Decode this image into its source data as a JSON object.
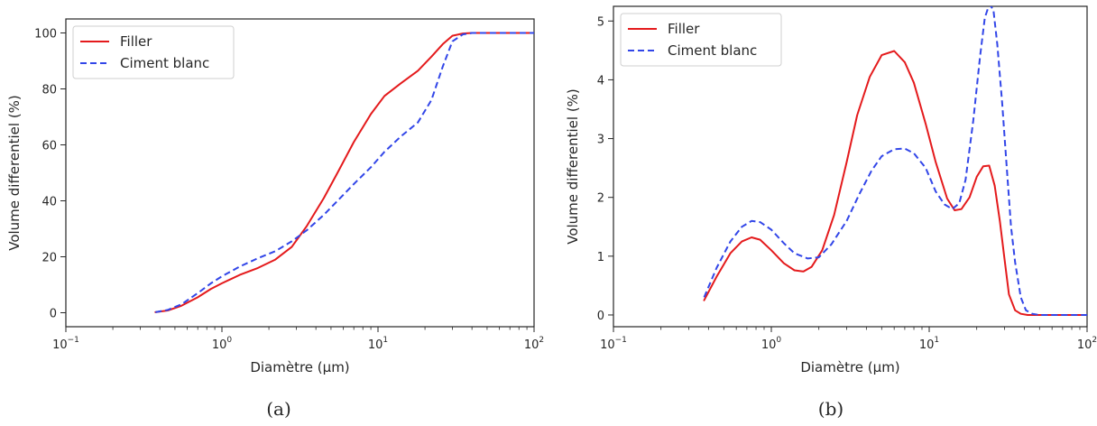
{
  "colors": {
    "filler": "#e41a1c",
    "ciment": "#3246e8",
    "axis": "#262626"
  },
  "chart_data": [
    {
      "type": "line",
      "caption": "(a)",
      "xlabel": "Diamètre (µm)",
      "ylabel": "Volume differentiel (%)",
      "xscale": "log",
      "xlim": [
        0.1,
        100
      ],
      "ylim": [
        -5,
        105
      ],
      "xticks": [
        0.1,
        1,
        10,
        100
      ],
      "xtick_labels": [
        {
          "base": "10",
          "exp": "−1"
        },
        {
          "base": "10",
          "exp": "0"
        },
        {
          "base": "10",
          "exp": "1"
        },
        {
          "base": "10",
          "exp": "2"
        }
      ],
      "yticks": [
        0,
        20,
        40,
        60,
        80,
        100
      ],
      "ytick_labels": [
        "0",
        "20",
        "40",
        "60",
        "80",
        "100"
      ],
      "legend": {
        "position": "top-left",
        "entries": [
          "Filler",
          "Ciment blanc"
        ]
      },
      "series": [
        {
          "name": "Filler",
          "style": "solid",
          "color_key": "filler",
          "x": [
            0.375,
            0.45,
            0.55,
            0.7,
            0.85,
            1.0,
            1.3,
            1.7,
            2.2,
            2.8,
            3.5,
            4.5,
            5.5,
            7.0,
            9.0,
            11.0,
            14.0,
            18.0,
            22.0,
            26.0,
            30.0,
            35.0,
            40.0,
            100.0
          ],
          "y": [
            0.2,
            0.8,
            2.5,
            5.5,
            8.5,
            10.5,
            13.5,
            16.0,
            19.0,
            23.5,
            31.0,
            41.0,
            50.0,
            61.0,
            71.0,
            77.5,
            82.0,
            86.5,
            91.5,
            96.0,
            99.0,
            99.8,
            100,
            100
          ]
        },
        {
          "name": "Ciment blanc",
          "style": "dashed",
          "color_key": "ciment",
          "x": [
            0.375,
            0.45,
            0.55,
            0.7,
            0.85,
            1.0,
            1.3,
            1.7,
            2.2,
            2.8,
            3.5,
            4.5,
            5.5,
            7.0,
            9.0,
            11.0,
            14.0,
            18.0,
            22.0,
            26.0,
            30.0,
            35.0,
            40.0,
            100.0
          ],
          "y": [
            0.2,
            1.0,
            3.0,
            7.0,
            10.5,
            13.0,
            16.5,
            19.5,
            22.0,
            25.5,
            29.5,
            35.0,
            40.0,
            46.0,
            52.0,
            57.5,
            63.0,
            68.0,
            76.0,
            88.0,
            97.0,
            99.5,
            100,
            100
          ]
        }
      ]
    },
    {
      "type": "line",
      "caption": "(b)",
      "xlabel": "Diamètre (µm)",
      "ylabel": "Volume differentiel (%)",
      "xscale": "log",
      "xlim": [
        0.1,
        100
      ],
      "ylim": [
        -0.2,
        5.25
      ],
      "xticks": [
        0.1,
        1,
        10,
        100
      ],
      "xtick_labels": [
        {
          "base": "10",
          "exp": "−1"
        },
        {
          "base": "10",
          "exp": "0"
        },
        {
          "base": "10",
          "exp": "1"
        },
        {
          "base": "10",
          "exp": "2"
        }
      ],
      "yticks": [
        0,
        1,
        2,
        3,
        4,
        5
      ],
      "ytick_labels": [
        "0",
        "1",
        "2",
        "3",
        "4",
        "5"
      ],
      "legend": {
        "position": "top-left",
        "entries": [
          "Filler",
          "Ciment blanc"
        ]
      },
      "series": [
        {
          "name": "Filler",
          "style": "solid",
          "color_key": "filler",
          "x": [
            0.375,
            0.45,
            0.55,
            0.65,
            0.75,
            0.85,
            1.0,
            1.2,
            1.4,
            1.6,
            1.8,
            2.1,
            2.5,
            3.0,
            3.5,
            4.2,
            5.0,
            6.0,
            7.0,
            8.0,
            9.5,
            11.0,
            13.0,
            14.5,
            16.0,
            18.0,
            20.0,
            22.0,
            24.0,
            26.0,
            28.0,
            30.0,
            32.0,
            35.0,
            38.0,
            42.0,
            50.0,
            100.0
          ],
          "y": [
            0.25,
            0.65,
            1.05,
            1.25,
            1.32,
            1.28,
            1.1,
            0.88,
            0.76,
            0.74,
            0.82,
            1.1,
            1.7,
            2.6,
            3.4,
            4.05,
            4.42,
            4.49,
            4.3,
            3.95,
            3.25,
            2.6,
            1.98,
            1.78,
            1.8,
            2.0,
            2.35,
            2.53,
            2.54,
            2.2,
            1.6,
            0.95,
            0.35,
            0.08,
            0.02,
            0.0,
            0.0,
            0.0
          ]
        },
        {
          "name": "Ciment blanc",
          "style": "dashed",
          "color_key": "ciment",
          "x": [
            0.375,
            0.45,
            0.55,
            0.65,
            0.75,
            0.85,
            1.0,
            1.2,
            1.4,
            1.7,
            2.0,
            2.4,
            3.0,
            3.6,
            4.3,
            5.0,
            6.0,
            7.0,
            8.0,
            9.5,
            11.0,
            12.5,
            14.0,
            15.5,
            17.0,
            19.0,
            21.0,
            22.5,
            24.0,
            25.5,
            27.0,
            29.0,
            31.0,
            33.0,
            35.0,
            38.0,
            41.0,
            45.0,
            50.0,
            100.0
          ],
          "y": [
            0.3,
            0.8,
            1.25,
            1.5,
            1.6,
            1.58,
            1.45,
            1.22,
            1.05,
            0.96,
            0.98,
            1.2,
            1.6,
            2.05,
            2.45,
            2.7,
            2.82,
            2.83,
            2.75,
            2.5,
            2.1,
            1.88,
            1.8,
            1.9,
            2.3,
            3.3,
            4.4,
            5.05,
            5.28,
            5.2,
            4.6,
            3.6,
            2.5,
            1.5,
            0.9,
            0.3,
            0.08,
            0.02,
            0.0,
            0.0
          ]
        }
      ]
    }
  ]
}
